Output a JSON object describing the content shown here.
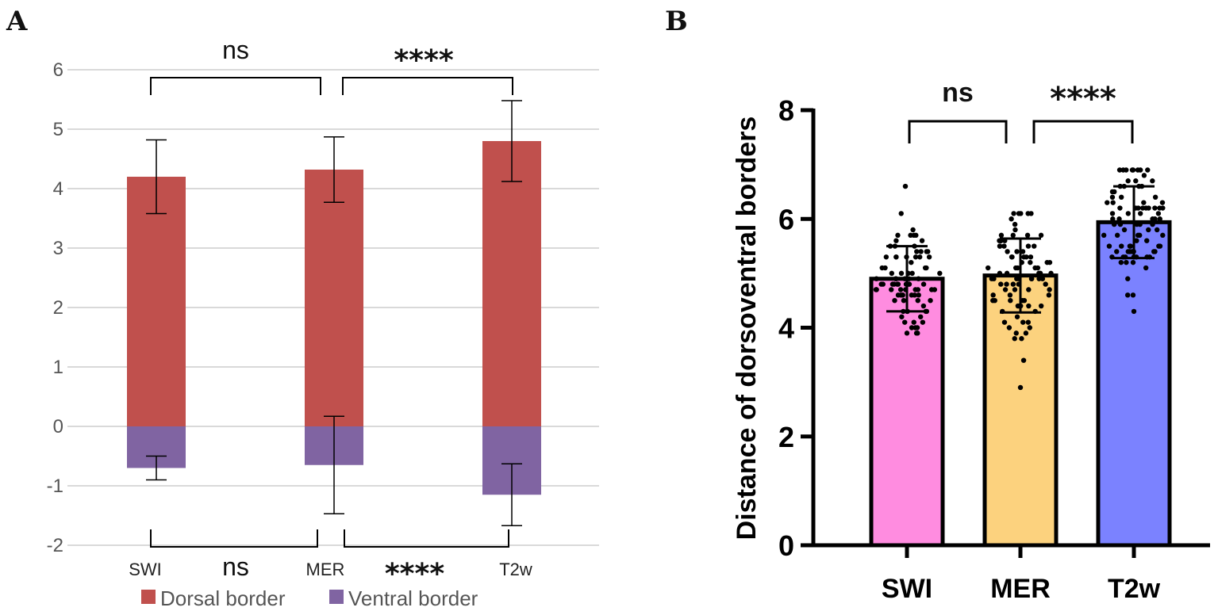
{
  "panels": {
    "a_letter": "A",
    "b_letter": "B"
  },
  "chart_data": [
    {
      "type": "bar",
      "panel": "A",
      "stacked": true,
      "categories": [
        "SWI",
        "MER",
        "T2w"
      ],
      "series": [
        {
          "name": "Dorsal border",
          "color": "#C0504D",
          "values": [
            4.2,
            4.32,
            4.8
          ],
          "errors": [
            0.62,
            0.55,
            0.68
          ]
        },
        {
          "name": "Ventral border",
          "color": "#8064A2",
          "values": [
            -0.7,
            -0.65,
            -1.15
          ],
          "errors": [
            0.2,
            0.82,
            0.52
          ]
        }
      ],
      "ylim": [
        -2,
        6
      ],
      "yticks": [
        6,
        5,
        4,
        3,
        2,
        1,
        0,
        -1,
        -2
      ],
      "grid": true,
      "legend": "bottom",
      "significance": [
        {
          "between": [
            "SWI",
            "MER"
          ],
          "label": "ns",
          "position": "top"
        },
        {
          "between": [
            "MER",
            "T2w"
          ],
          "label": "****",
          "position": "top"
        },
        {
          "between": [
            "SWI",
            "MER"
          ],
          "label": "ns",
          "position": "bottom"
        },
        {
          "between": [
            "MER",
            "T2w"
          ],
          "label": "****",
          "position": "bottom"
        }
      ]
    },
    {
      "type": "bar",
      "panel": "B",
      "categories": [
        "SWI",
        "MER",
        "T2w"
      ],
      "series": [
        {
          "name": "Distance of dorsoventral borders",
          "colors": [
            "#FF8CE0",
            "#FCD27E",
            "#7B82FF"
          ],
          "values": [
            4.9,
            4.96,
            5.94
          ],
          "sd": [
            0.6,
            0.68,
            0.66
          ]
        }
      ],
      "ylabel": "Distance of dorsoventral borders",
      "ylim": [
        0,
        8
      ],
      "yticks": [
        0,
        2,
        4,
        6,
        8
      ],
      "significance": [
        {
          "between": [
            "SWI",
            "MER"
          ],
          "label": "ns"
        },
        {
          "between": [
            "MER",
            "T2w"
          ],
          "label": "****"
        }
      ]
    }
  ]
}
